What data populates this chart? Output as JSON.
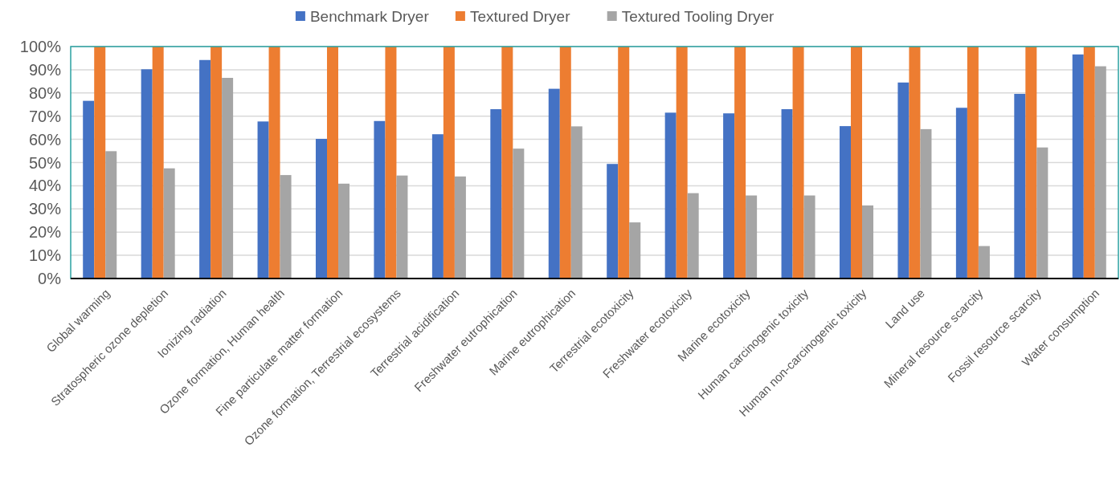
{
  "chart_data": {
    "type": "bar",
    "categories": [
      "Global warming",
      "Stratospheric ozone depletion",
      "Ionizing radiation",
      "Ozone formation, Human health",
      "Fine particulate matter formation",
      "Ozone formation, Terrestrial ecosystems",
      "Terrestrial acidification",
      "Freshwater eutrophication",
      "Marine eutrophication",
      "Terrestrial ecotoxicity",
      "Freshwater ecotoxicity",
      "Marine ecotoxicity",
      "Human carcinogenic toxicity",
      "Human non-carcinogenic toxicity",
      "Land use",
      "Mineral resource scarcity",
      "Fossil resource scarcity",
      "Water consumption"
    ],
    "series": [
      {
        "name": "Benchmark Dryer",
        "color": "#4472c4",
        "values": [
          76.6,
          90.2,
          94.2,
          67.7,
          60.2,
          67.9,
          62.2,
          73,
          81.8,
          49.4,
          71.5,
          71.2,
          73,
          65.7,
          84.5,
          73.6,
          79.6,
          96.6
        ]
      },
      {
        "name": "Textured Dryer",
        "color": "#ed7d31",
        "values": [
          100,
          100,
          100,
          100,
          100,
          100,
          100,
          100,
          100,
          100,
          100,
          100,
          100,
          100,
          100,
          100,
          100,
          100
        ]
      },
      {
        "name": "Textured Tooling Dryer",
        "color": "#a5a5a5",
        "values": [
          54.9,
          47.5,
          86.5,
          44.6,
          40.9,
          44.4,
          44,
          56,
          65.6,
          24.2,
          36.8,
          35.8,
          35.8,
          31.5,
          64.4,
          14,
          56.5,
          91.5
        ]
      }
    ],
    "ylim": [
      0,
      100
    ],
    "yticks": [
      {
        "value": 0,
        "label": "0%"
      },
      {
        "value": 10,
        "label": "10%"
      },
      {
        "value": 20,
        "label": "20%"
      },
      {
        "value": 30,
        "label": "30%"
      },
      {
        "value": 40,
        "label": "40%"
      },
      {
        "value": 50,
        "label": "50%"
      },
      {
        "value": 60,
        "label": "60%"
      },
      {
        "value": 70,
        "label": "70%"
      },
      {
        "value": 80,
        "label": "80%"
      },
      {
        "value": 90,
        "label": "90%"
      },
      {
        "value": 100,
        "label": "100%"
      }
    ],
    "grid": "y",
    "legend": "top"
  }
}
